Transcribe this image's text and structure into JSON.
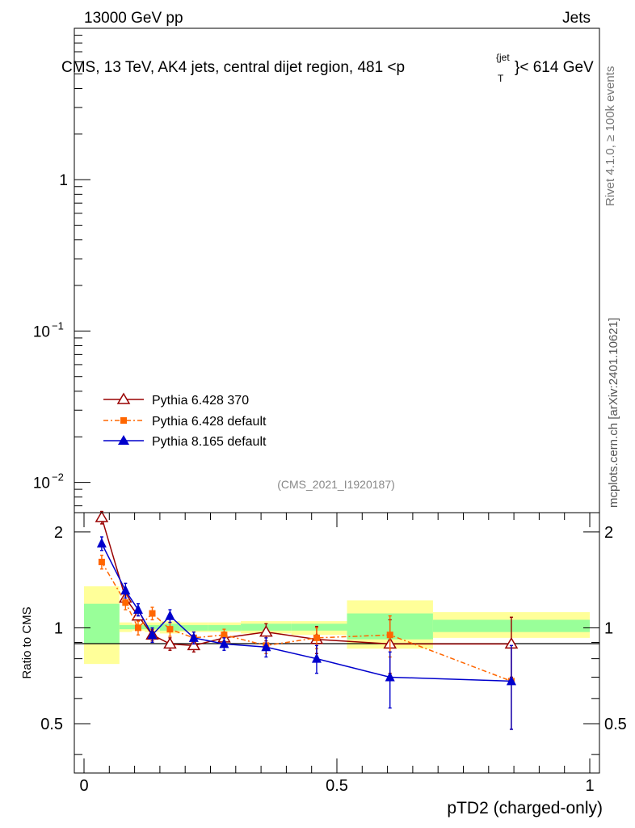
{
  "header": {
    "energy_label": "13000 GeV pp",
    "category_label": "Jets",
    "plot_title": "CMS, 13 TeV, AK4 jets, central dijet region, 481 <p",
    "title_sup": "{jet",
    "title_sub": "T",
    "title_tail": "}< 614 GeV"
  },
  "side": {
    "rivet_label": "Rivet 4.1.0, ≥ 100k events",
    "mcplots_label": "mcplots.cern.ch [arXiv:2401.10621]"
  },
  "analysis_label": "(CMS_2021_I1920187)",
  "chart_data": {
    "type": "line",
    "title": "CMS, 13 TeV, AK4 jets, central dijet region, 481 < pT(jet) < 614 GeV",
    "xlabel": "pTD2 (charged-only)",
    "ylabel": "Ratio to CMS",
    "xlim": [
      0,
      1
    ],
    "main_ylim_log10": [
      -2.2,
      1.0
    ],
    "ratio_ylim": [
      0.35,
      2.3
    ],
    "ratio_scale": "log",
    "main_yticks": [
      {
        "value": 1,
        "mantissa": "1",
        "exp": ""
      },
      {
        "value": 0.1,
        "mantissa": "10",
        "exp": "−1"
      },
      {
        "value": 0.01,
        "mantissa": "10",
        "exp": "−2"
      }
    ],
    "ratio_yticks": [
      {
        "value": 2,
        "label": "2"
      },
      {
        "value": 1,
        "label": "1"
      },
      {
        "value": 0.5,
        "label": "0.5"
      }
    ],
    "xticks": [
      {
        "value": 0,
        "label": "0"
      },
      {
        "value": 0.5,
        "label": "0.5"
      },
      {
        "value": 1,
        "label": "1"
      }
    ],
    "bands": [
      {
        "x0": 0.0,
        "x1": 0.07,
        "y_lo": 0.77,
        "y_hi": 1.35,
        "inner_lo": 0.89,
        "inner_hi": 1.19
      },
      {
        "x0": 0.07,
        "x1": 0.095,
        "y_lo": 0.97,
        "y_hi": 1.04,
        "inner_lo": 0.99,
        "inner_hi": 1.02
      },
      {
        "x0": 0.095,
        "x1": 0.12,
        "y_lo": 0.98,
        "y_hi": 1.03,
        "inner_lo": 0.99,
        "inner_hi": 1.02
      },
      {
        "x0": 0.12,
        "x1": 0.15,
        "y_lo": 0.97,
        "y_hi": 1.04,
        "inner_lo": 0.99,
        "inner_hi": 1.02
      },
      {
        "x0": 0.15,
        "x1": 0.19,
        "y_lo": 0.96,
        "y_hi": 1.05,
        "inner_lo": 0.98,
        "inner_hi": 1.03
      },
      {
        "x0": 0.19,
        "x1": 0.245,
        "y_lo": 0.97,
        "y_hi": 1.04,
        "inner_lo": 0.98,
        "inner_hi": 1.02
      },
      {
        "x0": 0.245,
        "x1": 0.31,
        "y_lo": 0.97,
        "y_hi": 1.04,
        "inner_lo": 0.98,
        "inner_hi": 1.02
      },
      {
        "x0": 0.31,
        "x1": 0.41,
        "y_lo": 0.96,
        "y_hi": 1.05,
        "inner_lo": 0.98,
        "inner_hi": 1.03
      },
      {
        "x0": 0.41,
        "x1": 0.52,
        "y_lo": 0.95,
        "y_hi": 1.05,
        "inner_lo": 0.98,
        "inner_hi": 1.03
      },
      {
        "x0": 0.52,
        "x1": 0.69,
        "y_lo": 0.86,
        "y_hi": 1.22,
        "inner_lo": 0.92,
        "inner_hi": 1.11
      },
      {
        "x0": 0.69,
        "x1": 1.0,
        "y_lo": 0.93,
        "y_hi": 1.12,
        "inner_lo": 0.97,
        "inner_hi": 1.06
      }
    ],
    "series": [
      {
        "name": "Pythia 6.428 370",
        "color": "#990000",
        "marker": "open-triangle",
        "dash": "",
        "x": [
          0.035,
          0.082,
          0.107,
          0.135,
          0.17,
          0.217,
          0.277,
          0.36,
          0.46,
          0.605,
          0.845
        ],
        "y": [
          2.22,
          1.24,
          1.09,
          0.95,
          0.89,
          0.88,
          0.93,
          0.97,
          0.92,
          0.89,
          0.89
        ],
        "err": [
          0.1,
          0.06,
          0.04,
          0.04,
          0.04,
          0.04,
          0.04,
          0.06,
          0.09,
          0.17,
          0.19
        ]
      },
      {
        "name": "Pythia 6.428 default",
        "color": "#ff6600",
        "marker": "square",
        "dash": "6,3,2,3",
        "x": [
          0.035,
          0.082,
          0.107,
          0.135,
          0.17,
          0.217,
          0.277,
          0.36,
          0.46,
          0.605,
          0.845
        ],
        "y": [
          1.61,
          1.2,
          1.0,
          1.11,
          0.99,
          0.93,
          0.95,
          0.88,
          0.93,
          0.95,
          0.68
        ],
        "err": [
          0.08,
          0.06,
          0.05,
          0.05,
          0.05,
          0.04,
          0.04,
          0.05,
          0.07,
          0.14,
          0.2
        ]
      },
      {
        "name": "Pythia 8.165 default",
        "color": "#0000cc",
        "marker": "triangle",
        "dash": "",
        "x": [
          0.035,
          0.082,
          0.107,
          0.135,
          0.17,
          0.217,
          0.277,
          0.36,
          0.46,
          0.605,
          0.845
        ],
        "y": [
          1.84,
          1.31,
          1.14,
          0.95,
          1.09,
          0.93,
          0.89,
          0.87,
          0.8,
          0.7,
          0.68
        ],
        "err": [
          0.09,
          0.07,
          0.05,
          0.05,
          0.05,
          0.04,
          0.04,
          0.06,
          0.08,
          0.14,
          0.2
        ]
      }
    ]
  }
}
